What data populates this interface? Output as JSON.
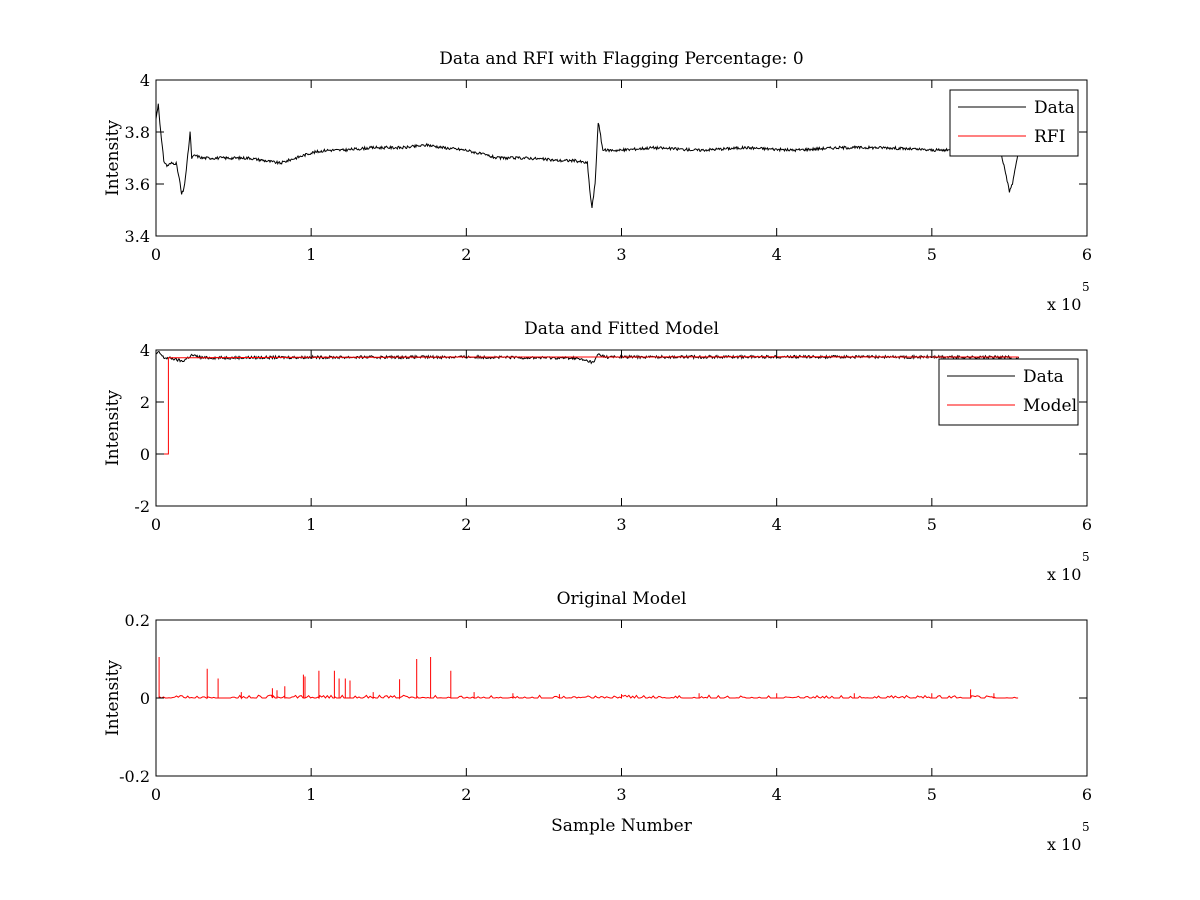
{
  "chart_data": [
    {
      "type": "line",
      "title": "Data and RFI with Flagging Percentage: 0",
      "xlabel": "",
      "ylabel": "Intensity",
      "xlim": [
        0,
        600000
      ],
      "ylim": [
        3.4,
        4.0
      ],
      "x_ticks": [
        0,
        100000,
        200000,
        300000,
        400000,
        500000,
        600000
      ],
      "x_tick_labels": [
        "0",
        "1",
        "2",
        "3",
        "4",
        "5",
        "6"
      ],
      "y_ticks": [
        3.4,
        3.6,
        3.8,
        4.0
      ],
      "y_tick_labels": [
        "3.4",
        "3.6",
        "3.8",
        "4"
      ],
      "x_exponent_label": "x 10",
      "x_exponent": "5",
      "legend": {
        "placement": "top-right",
        "entries": [
          "Data",
          "RFI"
        ]
      },
      "series": [
        {
          "name": "Data",
          "color": "#000000",
          "x": [
            0,
            1500,
            3000,
            5000,
            7000,
            10000,
            13000,
            15000,
            16500,
            18000,
            20000,
            22000,
            23000,
            25000,
            30000,
            40000,
            50000,
            60000,
            70000,
            80000,
            90000,
            100000,
            110000,
            120000,
            140000,
            160000,
            175000,
            185000,
            200000,
            220000,
            240000,
            260000,
            270000,
            278000,
            280000,
            281000,
            283000,
            285000,
            288000,
            292000,
            300000,
            320000,
            350000,
            380000,
            410000,
            440000,
            470000,
            500000,
            520000,
            535000,
            545000,
            548000,
            550000,
            551000,
            552000,
            554000,
            556000
          ],
          "y": [
            3.85,
            3.91,
            3.8,
            3.69,
            3.67,
            3.68,
            3.68,
            3.62,
            3.56,
            3.58,
            3.68,
            3.8,
            3.7,
            3.71,
            3.7,
            3.7,
            3.7,
            3.7,
            3.69,
            3.68,
            3.7,
            3.72,
            3.73,
            3.73,
            3.74,
            3.74,
            3.75,
            3.74,
            3.73,
            3.7,
            3.7,
            3.69,
            3.69,
            3.68,
            3.55,
            3.51,
            3.6,
            3.84,
            3.73,
            3.73,
            3.73,
            3.74,
            3.73,
            3.74,
            3.73,
            3.74,
            3.74,
            3.73,
            3.73,
            3.72,
            3.71,
            3.63,
            3.57,
            3.59,
            3.6,
            3.67,
            3.73
          ]
        },
        {
          "name": "RFI",
          "color": "#ff0000",
          "x": [],
          "y": []
        }
      ]
    },
    {
      "type": "line",
      "title": "Data and Fitted Model",
      "xlabel": "",
      "ylabel": "Intensity",
      "xlim": [
        0,
        600000
      ],
      "ylim": [
        -2,
        4
      ],
      "x_ticks": [
        0,
        100000,
        200000,
        300000,
        400000,
        500000,
        600000
      ],
      "x_tick_labels": [
        "0",
        "1",
        "2",
        "3",
        "4",
        "5",
        "6"
      ],
      "y_ticks": [
        -2,
        0,
        2,
        4
      ],
      "y_tick_labels": [
        "-2",
        "0",
        "2",
        "4"
      ],
      "x_exponent_label": "x 10",
      "x_exponent": "5",
      "legend": {
        "placement": "top-right",
        "entries": [
          "Data",
          "Model"
        ]
      },
      "series": [
        {
          "name": "Data",
          "color": "#000000",
          "x": [
            0,
            2000,
            5000,
            10000,
            15000,
            17000,
            20000,
            23000,
            30000,
            100000,
            200000,
            270000,
            280000,
            282000,
            285000,
            290000,
            400000,
            500000,
            550000,
            552000,
            556000
          ],
          "y": [
            3.85,
            3.91,
            3.7,
            3.68,
            3.6,
            3.56,
            3.68,
            3.8,
            3.7,
            3.72,
            3.73,
            3.69,
            3.55,
            3.51,
            3.84,
            3.73,
            3.74,
            3.73,
            3.72,
            3.58,
            3.73
          ]
        },
        {
          "name": "Model",
          "color": "#ff0000",
          "x": [
            0,
            8000,
            8001,
            100000,
            200000,
            300000,
            400000,
            500000,
            556000
          ],
          "y": [
            0,
            0,
            3.7,
            3.72,
            3.73,
            3.73,
            3.74,
            3.73,
            3.73
          ]
        }
      ]
    },
    {
      "type": "line",
      "title": "Original Model",
      "xlabel": "Sample Number",
      "ylabel": "Intensity",
      "xlim": [
        0,
        600000
      ],
      "ylim": [
        -0.2,
        0.2
      ],
      "x_ticks": [
        0,
        100000,
        200000,
        300000,
        400000,
        500000,
        600000
      ],
      "x_tick_labels": [
        "0",
        "1",
        "2",
        "3",
        "4",
        "5",
        "6"
      ],
      "y_ticks": [
        -0.2,
        0,
        0.2
      ],
      "y_tick_labels": [
        "-0.2",
        "0",
        "0.2"
      ],
      "x_exponent_label": "x 10",
      "x_exponent": "5",
      "series": [
        {
          "name": "",
          "color": "#ff0000",
          "baseline": 0,
          "x_end": 556000,
          "spikes": [
            [
              2000,
              0.105
            ],
            [
              33000,
              0.075
            ],
            [
              40000,
              0.05
            ],
            [
              55000,
              0.015
            ],
            [
              75000,
              0.025
            ],
            [
              78000,
              0.02
            ],
            [
              83000,
              0.03
            ],
            [
              95000,
              0.06
            ],
            [
              96000,
              0.055
            ],
            [
              105000,
              0.07
            ],
            [
              115000,
              0.07
            ],
            [
              118000,
              0.05
            ],
            [
              122000,
              0.05
            ],
            [
              125000,
              0.045
            ],
            [
              140000,
              0.015
            ],
            [
              157000,
              0.048
            ],
            [
              168000,
              0.1
            ],
            [
              177000,
              0.105
            ],
            [
              190000,
              0.07
            ],
            [
              205000,
              0.015
            ],
            [
              230000,
              0.012
            ],
            [
              260000,
              0.01
            ],
            [
              300000,
              0.01
            ],
            [
              350000,
              0.012
            ],
            [
              400000,
              0.012
            ],
            [
              450000,
              0.012
            ],
            [
              500000,
              0.012
            ],
            [
              525000,
              0.022
            ],
            [
              540000,
              0.012
            ]
          ]
        }
      ]
    }
  ]
}
